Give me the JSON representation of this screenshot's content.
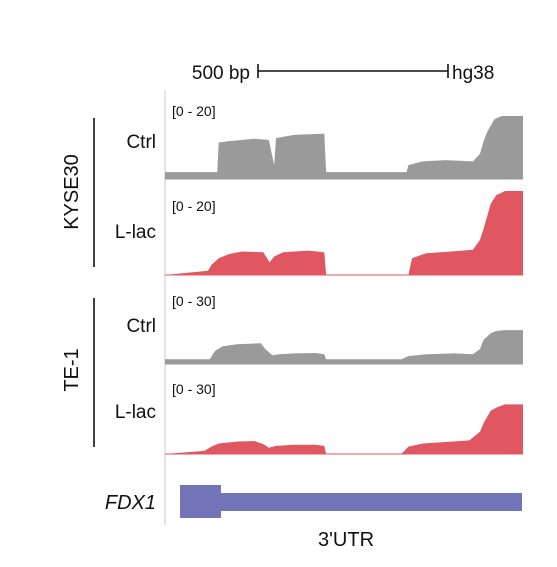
{
  "scale_bar": {
    "label": "500 bp",
    "genome": "hg38"
  },
  "groups": [
    {
      "name": "KYSE30"
    },
    {
      "name": "TE-1"
    }
  ],
  "tracks": [
    {
      "group": "KYSE30",
      "condition": "Ctrl",
      "range_label": "[0 - 20]",
      "color": "#9a9a9a",
      "profile": [
        [
          0.0,
          0.11
        ],
        [
          0.146,
          0.11
        ],
        [
          0.15,
          0.58
        ],
        [
          0.175,
          0.6
        ],
        [
          0.25,
          0.64
        ],
        [
          0.29,
          0.62
        ],
        [
          0.305,
          0.22
        ],
        [
          0.31,
          0.65
        ],
        [
          0.36,
          0.7
        ],
        [
          0.445,
          0.72
        ],
        [
          0.45,
          0.11
        ],
        [
          0.675,
          0.11
        ],
        [
          0.68,
          0.22
        ],
        [
          0.72,
          0.28
        ],
        [
          0.785,
          0.3
        ],
        [
          0.86,
          0.28
        ],
        [
          0.88,
          0.4
        ],
        [
          0.89,
          0.6
        ],
        [
          0.9,
          0.75
        ],
        [
          0.92,
          0.95
        ],
        [
          0.94,
          1.0
        ],
        [
          1.0,
          1.0
        ]
      ]
    },
    {
      "group": "KYSE30",
      "condition": "L-lac",
      "range_label": "[0 - 20]",
      "color": "#e05661",
      "profile": [
        [
          0.0,
          0.0
        ],
        [
          0.12,
          0.05
        ],
        [
          0.13,
          0.12
        ],
        [
          0.15,
          0.2
        ],
        [
          0.18,
          0.25
        ],
        [
          0.215,
          0.28
        ],
        [
          0.275,
          0.27
        ],
        [
          0.292,
          0.15
        ],
        [
          0.305,
          0.22
        ],
        [
          0.33,
          0.27
        ],
        [
          0.4,
          0.29
        ],
        [
          0.445,
          0.27
        ],
        [
          0.45,
          0.0
        ],
        [
          0.68,
          0.0
        ],
        [
          0.69,
          0.2
        ],
        [
          0.73,
          0.26
        ],
        [
          0.8,
          0.28
        ],
        [
          0.86,
          0.3
        ],
        [
          0.88,
          0.42
        ],
        [
          0.89,
          0.55
        ],
        [
          0.91,
          0.85
        ],
        [
          0.925,
          0.95
        ],
        [
          0.95,
          1.0
        ],
        [
          1.0,
          1.0
        ]
      ]
    },
    {
      "group": "TE-1",
      "condition": "Ctrl",
      "range_label": "[0 - 30]",
      "color": "#9a9a9a",
      "profile": [
        [
          0.0,
          0.11
        ],
        [
          0.125,
          0.11
        ],
        [
          0.14,
          0.3
        ],
        [
          0.16,
          0.4
        ],
        [
          0.2,
          0.45
        ],
        [
          0.268,
          0.47
        ],
        [
          0.28,
          0.34
        ],
        [
          0.3,
          0.2
        ],
        [
          0.32,
          0.22
        ],
        [
          0.36,
          0.24
        ],
        [
          0.42,
          0.25
        ],
        [
          0.445,
          0.22
        ],
        [
          0.45,
          0.11
        ],
        [
          0.66,
          0.11
        ],
        [
          0.68,
          0.18
        ],
        [
          0.73,
          0.22
        ],
        [
          0.81,
          0.24
        ],
        [
          0.86,
          0.22
        ],
        [
          0.88,
          0.34
        ],
        [
          0.89,
          0.55
        ],
        [
          0.91,
          0.7
        ],
        [
          0.925,
          0.75
        ],
        [
          0.95,
          0.77
        ],
        [
          1.0,
          0.77
        ]
      ]
    },
    {
      "group": "TE-1",
      "condition": "L-lac",
      "range_label": "[0 - 30]",
      "color": "#e05661",
      "profile": [
        [
          0.0,
          0.0
        ],
        [
          0.11,
          0.05
        ],
        [
          0.13,
          0.12
        ],
        [
          0.15,
          0.17
        ],
        [
          0.2,
          0.2
        ],
        [
          0.25,
          0.21
        ],
        [
          0.275,
          0.16
        ],
        [
          0.29,
          0.1
        ],
        [
          0.31,
          0.13
        ],
        [
          0.36,
          0.15
        ],
        [
          0.42,
          0.15
        ],
        [
          0.445,
          0.13
        ],
        [
          0.45,
          0.0
        ],
        [
          0.66,
          0.0
        ],
        [
          0.68,
          0.12
        ],
        [
          0.72,
          0.17
        ],
        [
          0.8,
          0.2
        ],
        [
          0.85,
          0.22
        ],
        [
          0.88,
          0.36
        ],
        [
          0.89,
          0.5
        ],
        [
          0.91,
          0.7
        ],
        [
          0.93,
          0.76
        ],
        [
          0.95,
          0.8
        ],
        [
          1.0,
          0.8
        ]
      ]
    }
  ],
  "gene": {
    "name": "FDX1",
    "region_label": "3'UTR",
    "color": "#7373b8"
  }
}
